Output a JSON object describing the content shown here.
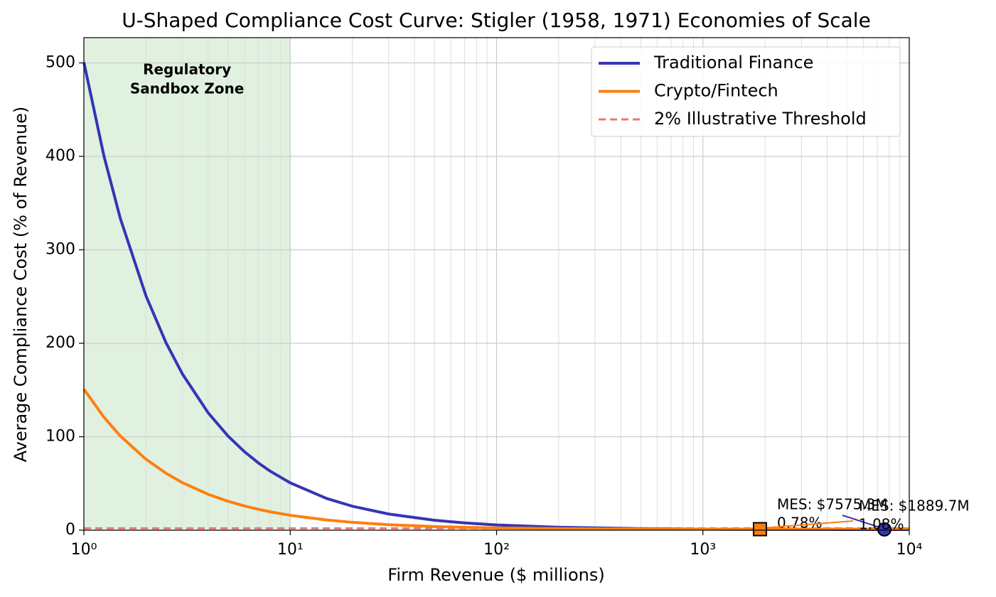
{
  "chart_data": {
    "type": "line",
    "title": "U-Shaped Compliance Cost Curve: Stigler (1958, 1971) Economies of Scale",
    "xlabel": "Firm Revenue ($ millions)",
    "ylabel": "Average Compliance Cost (% of Revenue)",
    "xscale": "log",
    "xlim": [
      1,
      10000
    ],
    "xticks": [
      {
        "value": 1,
        "label": "10⁰"
      },
      {
        "value": 10,
        "label": "10¹"
      },
      {
        "value": 100,
        "label": "10²"
      },
      {
        "value": 1000,
        "label": "10³"
      },
      {
        "value": 10000,
        "label": "10⁴"
      }
    ],
    "ylim": [
      0,
      527
    ],
    "yticks": [
      0,
      100,
      200,
      300,
      400,
      500
    ],
    "grid": true,
    "legend": "upper right",
    "x": [
      1,
      1.25,
      1.5,
      2,
      2.5,
      3,
      4,
      5,
      6,
      7,
      8,
      10,
      15,
      20,
      30,
      50,
      70,
      100,
      200,
      500,
      1000,
      1889.7,
      2000,
      5000,
      7575.3,
      10000
    ],
    "series": [
      {
        "name": "Traditional Finance",
        "color": "#3535b5",
        "values": [
          500.65,
          400.65,
          333.98,
          250.65,
          200.65,
          167.31,
          125.65,
          100.65,
          83.98,
          72.08,
          63.15,
          50.65,
          33.98,
          25.65,
          17.31,
          10.65,
          7.79,
          5.65,
          3.15,
          1.65,
          1.16,
          0.93,
          0.92,
          0.79,
          0.78,
          0.79
        ]
      },
      {
        "name": "Crypto/Fintech",
        "color": "#ff7f0e",
        "values": [
          150.92,
          120.92,
          100.92,
          75.92,
          60.92,
          50.92,
          38.42,
          30.92,
          25.92,
          22.35,
          19.67,
          15.92,
          10.92,
          8.42,
          5.92,
          3.92,
          3.06,
          2.42,
          1.68,
          1.24,
          1.11,
          1.08,
          1.08,
          1.16,
          1.26,
          1.36
        ]
      }
    ],
    "threshold": {
      "name": "2% Illustrative Threshold",
      "value": 2,
      "color": "#e8777a"
    },
    "shade": {
      "x": [
        1,
        10
      ],
      "color": "#2ca02c",
      "text": [
        "Regulatory",
        "Sandbox Zone"
      ]
    },
    "annotations": [
      {
        "series": 0,
        "x": 7575.3,
        "y": 0.78,
        "text": [
          "MES: $7575.3M",
          "0.78%"
        ]
      },
      {
        "series": 1,
        "x": 1889.7,
        "y": 1.08,
        "text": [
          "MES: $1889.7M",
          "1.08%"
        ]
      }
    ]
  }
}
